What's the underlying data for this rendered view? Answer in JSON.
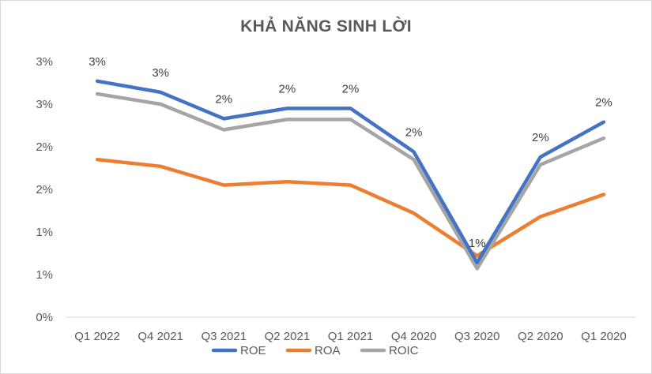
{
  "chart_data": {
    "type": "line",
    "title": "KHẢ NĂNG SINH LỜI",
    "categories": [
      "Q1 2022",
      "Q4 2021",
      "Q3 2021",
      "Q2 2021",
      "Q1 2021",
      "Q4 2020",
      "Q3 2020",
      "Q2 2020",
      "Q1 2020"
    ],
    "y_tick_labels": [
      "0%",
      "1%",
      "1%",
      "2%",
      "2%",
      "3%",
      "3%"
    ],
    "ylim": [
      0,
      3.0
    ],
    "y_tick_step": 0.5,
    "grid": false,
    "legend_position": "bottom",
    "series": [
      {
        "name": "ROE",
        "color": "#4472c4",
        "values": [
          2.77,
          2.64,
          2.33,
          2.45,
          2.45,
          1.94,
          0.64,
          1.88,
          2.29
        ],
        "data_labels": [
          "3%",
          "3%",
          "2%",
          "2%",
          "2%",
          "2%",
          "1%",
          "2%",
          "2%"
        ]
      },
      {
        "name": "ROA",
        "color": "#ed7d31",
        "values": [
          1.85,
          1.77,
          1.55,
          1.59,
          1.55,
          1.22,
          0.72,
          1.18,
          1.44
        ]
      },
      {
        "name": "ROIC",
        "color": "#a5a5a5",
        "values": [
          2.62,
          2.5,
          2.2,
          2.32,
          2.32,
          1.85,
          0.57,
          1.79,
          2.1
        ]
      }
    ]
  }
}
